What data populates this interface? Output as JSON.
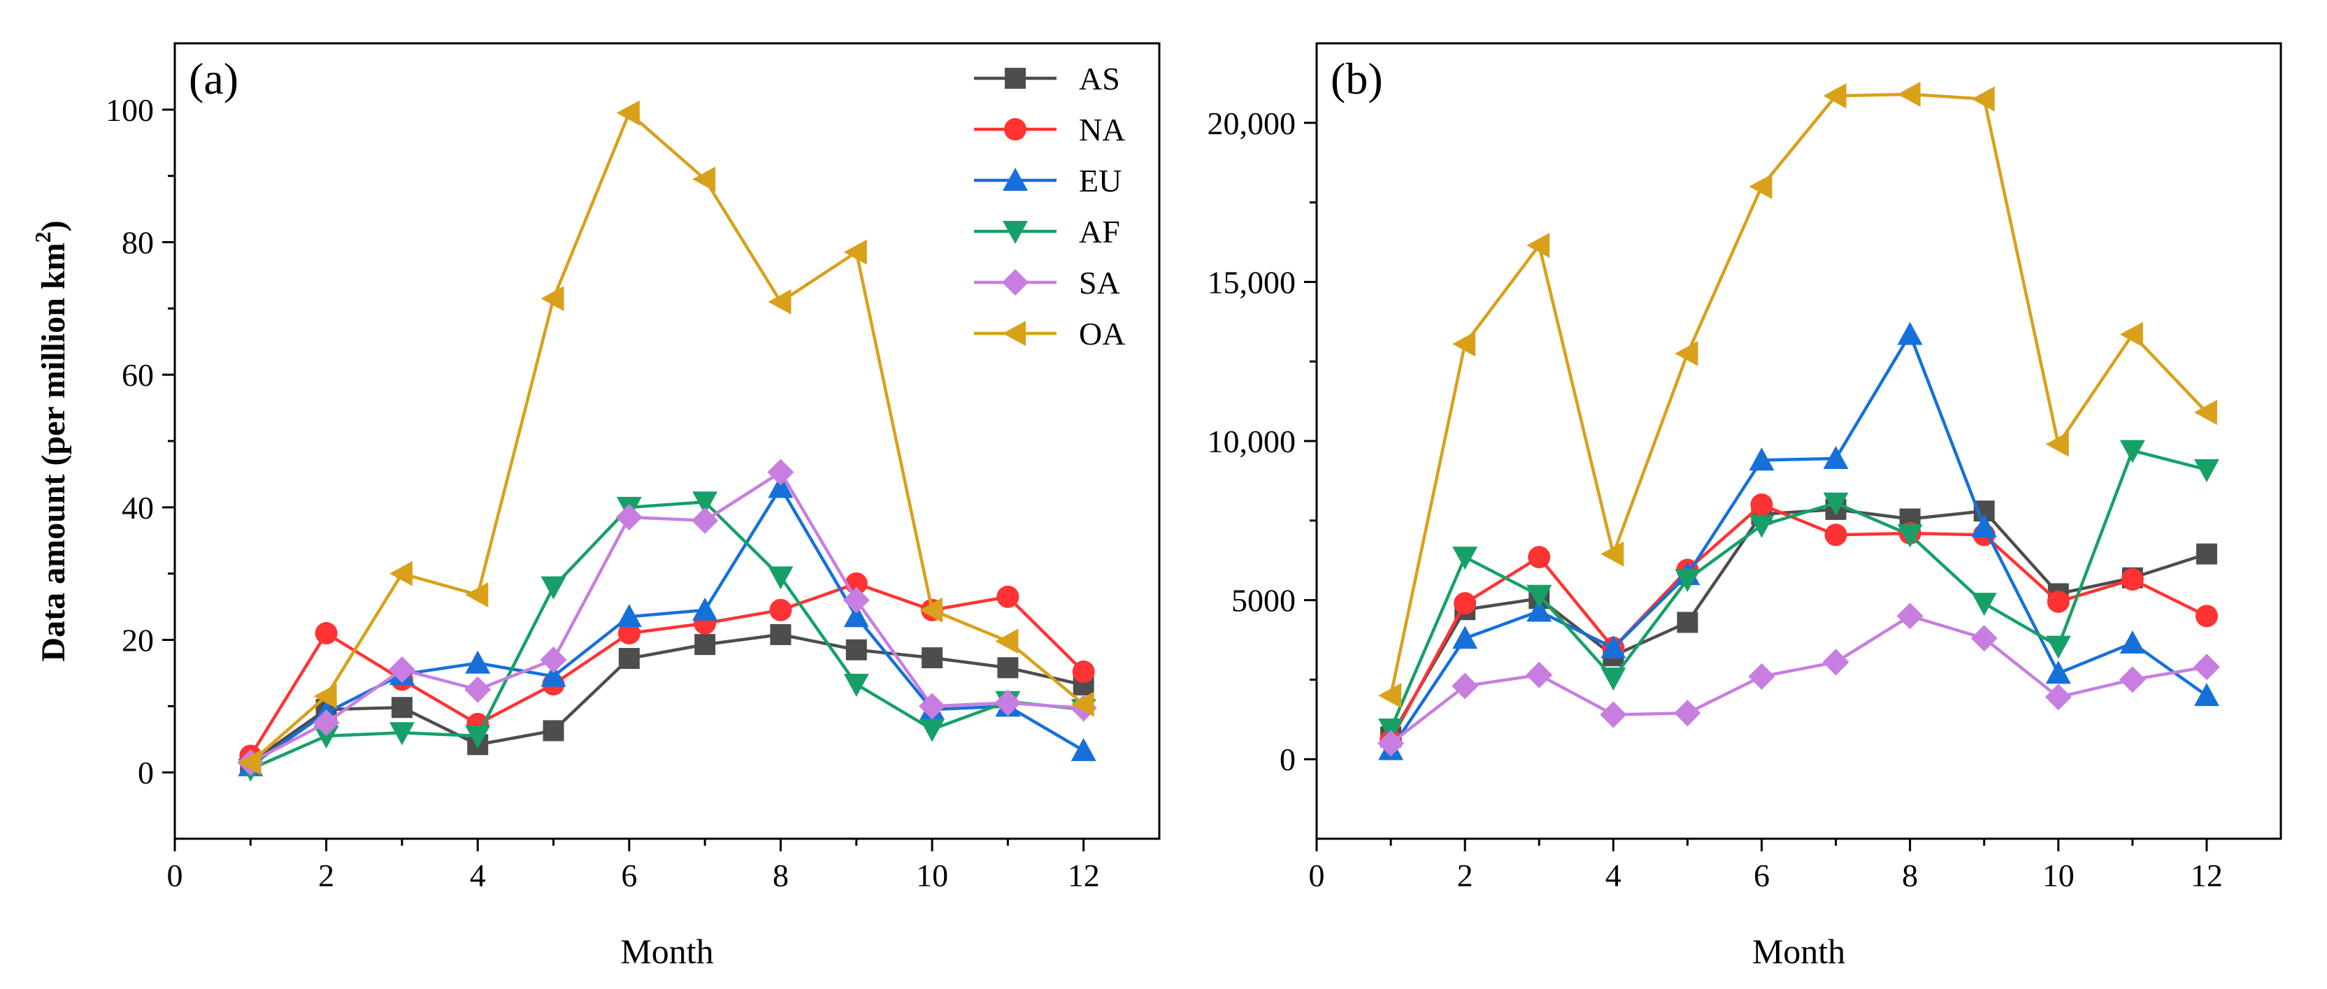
{
  "chart_data": [
    {
      "type": "line",
      "panel_label": "(a)",
      "xlabel": "Month",
      "ylabel_main": "Data amount (per million km",
      "ylabel_sup": "2",
      "ylabel_end": ")",
      "xlim": [
        0,
        13
      ],
      "ylim": [
        -10,
        110
      ],
      "xticks": [
        0,
        2,
        4,
        6,
        8,
        10,
        12
      ],
      "yticks": [
        0,
        20,
        40,
        60,
        80,
        100
      ],
      "x": [
        1,
        2,
        3,
        4,
        5,
        6,
        7,
        8,
        9,
        10,
        11,
        12
      ],
      "legend_position": "top-right",
      "series": [
        {
          "name": "AS",
          "color": "#4d4d4d",
          "marker": "square",
          "values": [
            1.5,
            9.5,
            9.8,
            4.2,
            6.3,
            17.2,
            19.3,
            20.8,
            18.5,
            17.3,
            15.8,
            13.2
          ]
        },
        {
          "name": "NA",
          "color": "#ff3333",
          "marker": "circle",
          "values": [
            2.5,
            21,
            14,
            7.3,
            13.3,
            21,
            22.5,
            24.5,
            28.5,
            24.5,
            26.5,
            15.2
          ]
        },
        {
          "name": "EU",
          "color": "#1570d9",
          "marker": "triangle-up",
          "values": [
            1.0,
            9,
            14.8,
            16.5,
            14.5,
            23.5,
            24.5,
            43,
            23.5,
            9.5,
            10,
            3.3
          ]
        },
        {
          "name": "AF",
          "color": "#16a067",
          "marker": "triangle-down",
          "values": [
            0.5,
            5.5,
            6,
            5.5,
            28,
            40,
            40.8,
            29.5,
            13.3,
            6.5,
            10.7,
            9.5
          ]
        },
        {
          "name": "SA",
          "color": "#c77ee0",
          "marker": "diamond",
          "values": [
            1.5,
            7.5,
            15.5,
            12.5,
            17,
            38.5,
            38,
            45.3,
            26,
            10,
            10.5,
            9.7
          ]
        },
        {
          "name": "OA",
          "color": "#d9a01a",
          "marker": "triangle-left",
          "values": [
            1.5,
            11.5,
            30,
            26.8,
            71.5,
            99.5,
            89.5,
            71,
            78.5,
            24.5,
            19.8,
            10.3
          ]
        }
      ]
    },
    {
      "type": "line",
      "panel_label": "(b)",
      "xlabel": "Month",
      "ylabel_main": "",
      "xlim": [
        0,
        13
      ],
      "ylim": [
        -2500,
        22500
      ],
      "xticks": [
        0,
        2,
        4,
        6,
        8,
        10,
        12
      ],
      "yticks": [
        0,
        5000,
        10000,
        15000,
        20000
      ],
      "ytick_labels": [
        "0",
        "5000",
        "10,000",
        "15,000",
        "20,000"
      ],
      "x": [
        1,
        2,
        3,
        4,
        5,
        6,
        7,
        8,
        9,
        10,
        11,
        12
      ],
      "series": [
        {
          "name": "AS",
          "color": "#4d4d4d",
          "marker": "square",
          "values": [
            700,
            4700,
            5050,
            3250,
            4300,
            7700,
            7850,
            7550,
            7800,
            5200,
            5700,
            6450
          ]
        },
        {
          "name": "NA",
          "color": "#ff3333",
          "marker": "circle",
          "values": [
            600,
            4900,
            6350,
            3500,
            5950,
            8000,
            7050,
            7100,
            7050,
            4950,
            5650,
            4500
          ]
        },
        {
          "name": "EU",
          "color": "#1570d9",
          "marker": "triangle-up",
          "values": [
            300,
            3800,
            4650,
            3500,
            5800,
            9400,
            9450,
            13350,
            7300,
            2700,
            3650,
            2000
          ]
        },
        {
          "name": "AF",
          "color": "#16a067",
          "marker": "triangle-down",
          "values": [
            950,
            6350,
            5150,
            2550,
            5650,
            7350,
            8050,
            7050,
            4900,
            3550,
            9700,
            9100
          ]
        },
        {
          "name": "SA",
          "color": "#c77ee0",
          "marker": "diamond",
          "values": [
            500,
            2300,
            2650,
            1400,
            1450,
            2600,
            3050,
            4500,
            3800,
            1950,
            2500,
            2900
          ]
        },
        {
          "name": "OA",
          "color": "#d9a01a",
          "marker": "triangle-left",
          "values": [
            2000,
            13050,
            16150,
            6450,
            12750,
            18000,
            20850,
            20900,
            20750,
            9900,
            13350,
            10900
          ]
        }
      ]
    }
  ]
}
